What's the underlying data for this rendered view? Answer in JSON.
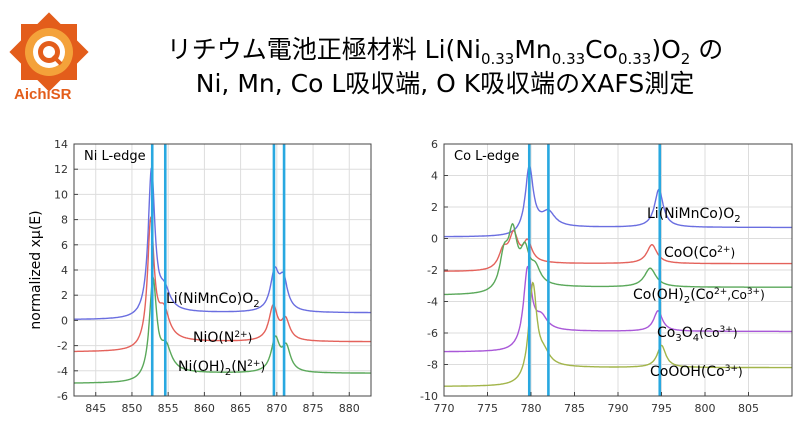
{
  "header": {
    "logo_text": "AichiSR",
    "title_line1_prefix": "リチウム電池正極材料 Li(Ni",
    "title_sub1": "0.33",
    "title_mid1": "Mn",
    "title_sub2": "0.33",
    "title_mid2": "Co",
    "title_sub3": "0.33",
    "title_mid3": ")O",
    "title_sub4": "2",
    "title_suffix": " の",
    "title_line2": "Ni, Mn, Co L吸収端, O K吸収端のXAFS測定"
  },
  "colors": {
    "blue": "#6a6ee0",
    "red": "#e4625b",
    "green": "#5aa85a",
    "purple": "#a958d8",
    "olive": "#a2b54a",
    "marker": "#28a8e0",
    "logo": "#e35d1b"
  },
  "chart_data": [
    {
      "type": "line",
      "annotation": "Ni L-edge",
      "ylabel": "normalized xμ(E)",
      "xlim": [
        842,
        883
      ],
      "ylim": [
        -6,
        14
      ],
      "xticks": [
        845,
        850,
        855,
        860,
        865,
        870,
        875,
        880
      ],
      "yticks": [
        -6,
        -4,
        -2,
        0,
        2,
        4,
        6,
        8,
        10,
        12,
        14
      ],
      "grid": true,
      "vlines": [
        852.8,
        854.6,
        869.6,
        871.0
      ],
      "series": [
        {
          "label": "Li(NiMnCo)O2",
          "color": "blue",
          "offset": 0.05,
          "pre": 0.05,
          "post": 0.6,
          "peaks": [
            [
              852.7,
              11.5,
              0.55
            ],
            [
              854.5,
              1.5,
              0.9
            ],
            [
              869.7,
              3.0,
              0.7
            ],
            [
              870.9,
              2.4,
              0.7
            ]
          ]
        },
        {
          "label": "NiO(N2+)",
          "color": "red",
          "offset": -2.5,
          "pre": -2.5,
          "post": -1.7,
          "peaks": [
            [
              852.6,
              9.8,
              0.55
            ],
            [
              854.4,
              2.2,
              0.9
            ],
            [
              869.5,
              2.7,
              0.7
            ],
            [
              871.2,
              1.6,
              0.7
            ]
          ]
        },
        {
          "label": "Ni(OH)2(N2+)",
          "color": "green",
          "offset": -5.0,
          "pre": -5.0,
          "post": -4.2,
          "peaks": [
            [
              852.9,
              7.6,
              0.6
            ],
            [
              854.7,
              1.8,
              0.9
            ],
            [
              869.8,
              2.6,
              0.7
            ],
            [
              871.3,
              1.9,
              0.7
            ]
          ]
        }
      ]
    },
    {
      "type": "line",
      "annotation": "Co L-edge",
      "ylabel": "",
      "xlim": [
        770,
        810
      ],
      "ylim": [
        -10,
        6
      ],
      "xticks": [
        770,
        775,
        780,
        785,
        790,
        795,
        800,
        805
      ],
      "yticks": [
        -10,
        -8,
        -6,
        -4,
        -2,
        0,
        2,
        4,
        6
      ],
      "grid": true,
      "vlines": [
        779.8,
        782.0,
        794.8
      ],
      "series": [
        {
          "label": "Li(NiMnCo)O2",
          "color": "blue",
          "offset": 0.1,
          "pre": 0.1,
          "post": 0.7,
          "peaks": [
            [
              779.8,
              4.1,
              0.55
            ],
            [
              782.0,
              0.9,
              0.9
            ],
            [
              794.7,
              2.4,
              0.6
            ]
          ]
        },
        {
          "label": "CoO(Co2+)",
          "color": "red",
          "offset": -2.1,
          "pre": -2.1,
          "post": -1.6,
          "peaks": [
            [
              776.8,
              1.0,
              0.6
            ],
            [
              778.0,
              1.8,
              0.6
            ],
            [
              779.6,
              1.3,
              0.6
            ],
            [
              793.9,
              1.2,
              0.7
            ]
          ]
        },
        {
          "label": "Co(OH)2(Co2+,Co3+)",
          "color": "green",
          "offset": -3.6,
          "pre": -3.6,
          "post": -3.1,
          "peaks": [
            [
              776.9,
              2.0,
              0.6
            ],
            [
              777.9,
              3.2,
              0.6
            ],
            [
              779.3,
              2.0,
              0.6
            ],
            [
              780.5,
              1.0,
              0.7
            ],
            [
              793.7,
              1.2,
              0.8
            ]
          ]
        },
        {
          "label": "Co3O4(Co3+)",
          "color": "purple",
          "offset": -7.2,
          "pre": -7.2,
          "post": -5.9,
          "peaks": [
            [
              779.6,
              4.6,
              0.55
            ],
            [
              781.2,
              0.8,
              0.8
            ],
            [
              794.6,
              1.3,
              0.6
            ]
          ]
        },
        {
          "label": "CoOOH(Co3+)",
          "color": "olive",
          "offset": -9.4,
          "pre": -9.4,
          "post": -8.2,
          "peaks": [
            [
              780.2,
              5.8,
              0.55
            ],
            [
              781.5,
              0.7,
              0.8
            ],
            [
              795.0,
              1.4,
              0.6
            ]
          ]
        }
      ]
    }
  ],
  "labels": {
    "left": [
      {
        "base": "Li(NiMnCo)O",
        "sub": "2",
        "tail": ""
      },
      {
        "base": "NiO(N",
        "sup": "2+",
        "tail": ")"
      },
      {
        "base": "Ni(OH)",
        "sub": "2",
        "mid": "(N",
        "sup": "2+",
        "tail": ")"
      }
    ],
    "right": [
      {
        "base": "Li(NiMnCo)O",
        "sub": "2",
        "tail": ""
      },
      {
        "base": "CoO(Co",
        "sup": "2+",
        "tail": ")"
      },
      {
        "base": "Co(OH)",
        "sub": "2",
        "mid": "(Co",
        "sup": "2+",
        "mid2": ",Co",
        "sup2": "3+",
        "tail": ")"
      },
      {
        "base": "Co",
        "sub": "3",
        "mid": "O",
        "sub2": "4",
        "mid2": "(Co",
        "sup2": "3+",
        "tail": ")"
      },
      {
        "base": "CoOOH(Co",
        "sup": "3+",
        "tail": ")"
      }
    ]
  }
}
